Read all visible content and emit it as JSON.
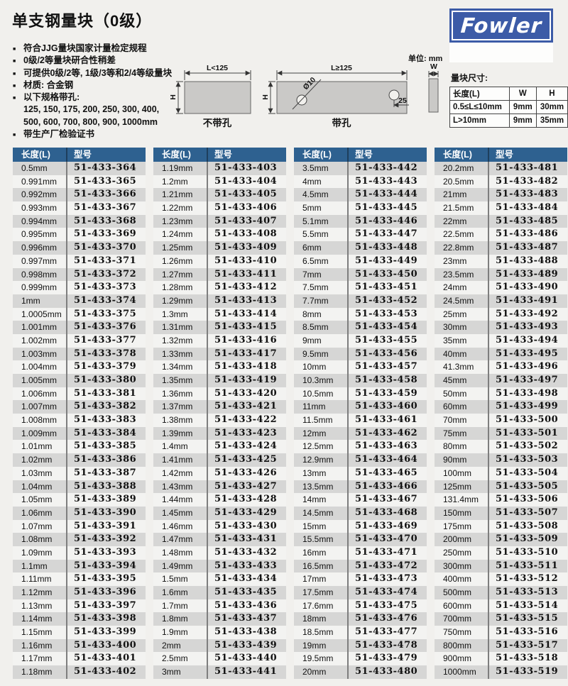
{
  "page": {
    "title": "单支钢量块（0级）",
    "unit_note": "单位: mm"
  },
  "logo": {
    "text": "Fowler"
  },
  "features": {
    "items": [
      "符合JJG量块国家计量检定规程",
      "0级/2等量块研合性稍差",
      "可提供0级/2等, 1级/3等和2/4等级量块",
      "材质: 合金钢",
      "以下规格带孔:",
      "125, 150, 175, 200, 250, 300, 400,",
      "500, 600, 700, 800, 900, 1000mm",
      "带生产厂检验证书"
    ]
  },
  "diagram": {
    "left": {
      "top_dim": "L<125",
      "side_dim": "H",
      "caption": "不带孔"
    },
    "right": {
      "top_dim": "L≥125",
      "side_dim": "H",
      "hole_label": "Ø10",
      "offset_label": "25",
      "caption": "带孔"
    },
    "width_label": "W"
  },
  "size_table": {
    "title": "量块尺寸:",
    "headers": [
      "长度(L)",
      "W",
      "H"
    ],
    "rows": [
      [
        "0.5≤L≤10mm",
        "9mm",
        "30mm"
      ],
      [
        "L>10mm",
        "9mm",
        "35mm"
      ]
    ]
  },
  "tables": {
    "headers": [
      "长度(L)",
      "型号"
    ],
    "columns": [
      {
        "rows": [
          [
            "0.5mm",
            "51-433-364"
          ],
          [
            "0.991mm",
            "51-433-365"
          ],
          [
            "0.992mm",
            "51-433-366"
          ],
          [
            "0.993mm",
            "51-433-367"
          ],
          [
            "0.994mm",
            "51-433-368"
          ],
          [
            "0.995mm",
            "51-433-369"
          ],
          [
            "0.996mm",
            "51-433-370"
          ],
          [
            "0.997mm",
            "51-433-371"
          ],
          [
            "0.998mm",
            "51-433-372"
          ],
          [
            "0.999mm",
            "51-433-373"
          ],
          [
            "1mm",
            "51-433-374"
          ],
          [
            "1.0005mm",
            "51-433-375"
          ],
          [
            "1.001mm",
            "51-433-376"
          ],
          [
            "1.002mm",
            "51-433-377"
          ],
          [
            "1.003mm",
            "51-433-378"
          ],
          [
            "1.004mm",
            "51-433-379"
          ],
          [
            "1.005mm",
            "51-433-380"
          ],
          [
            "1.006mm",
            "51-433-381"
          ],
          [
            "1.007mm",
            "51-433-382"
          ],
          [
            "1.008mm",
            "51-433-383"
          ],
          [
            "1.009mm",
            "51-433-384"
          ],
          [
            "1.01mm",
            "51-433-385"
          ],
          [
            "1.02mm",
            "51-433-386"
          ],
          [
            "1.03mm",
            "51-433-387"
          ],
          [
            "1.04mm",
            "51-433-388"
          ],
          [
            "1.05mm",
            "51-433-389"
          ],
          [
            "1.06mm",
            "51-433-390"
          ],
          [
            "1.07mm",
            "51-433-391"
          ],
          [
            "1.08mm",
            "51-433-392"
          ],
          [
            "1.09mm",
            "51-433-393"
          ],
          [
            "1.1mm",
            "51-433-394"
          ],
          [
            "1.11mm",
            "51-433-395"
          ],
          [
            "1.12mm",
            "51-433-396"
          ],
          [
            "1.13mm",
            "51-433-397"
          ],
          [
            "1.14mm",
            "51-433-398"
          ],
          [
            "1.15mm",
            "51-433-399"
          ],
          [
            "1.16mm",
            "51-433-400"
          ],
          [
            "1.17mm",
            "51-433-401"
          ],
          [
            "1.18mm",
            "51-433-402"
          ]
        ]
      },
      {
        "rows": [
          [
            "1.19mm",
            "51-433-403"
          ],
          [
            "1.2mm",
            "51-433-404"
          ],
          [
            "1.21mm",
            "51-433-405"
          ],
          [
            "1.22mm",
            "51-433-406"
          ],
          [
            "1.23mm",
            "51-433-407"
          ],
          [
            "1.24mm",
            "51-433-408"
          ],
          [
            "1.25mm",
            "51-433-409"
          ],
          [
            "1.26mm",
            "51-433-410"
          ],
          [
            "1.27mm",
            "51-433-411"
          ],
          [
            "1.28mm",
            "51-433-412"
          ],
          [
            "1.29mm",
            "51-433-413"
          ],
          [
            "1.3mm",
            "51-433-414"
          ],
          [
            "1.31mm",
            "51-433-415"
          ],
          [
            "1.32mm",
            "51-433-416"
          ],
          [
            "1.33mm",
            "51-433-417"
          ],
          [
            "1.34mm",
            "51-433-418"
          ],
          [
            "1.35mm",
            "51-433-419"
          ],
          [
            "1.36mm",
            "51-433-420"
          ],
          [
            "1.37mm",
            "51-433-421"
          ],
          [
            "1.38mm",
            "51-433-422"
          ],
          [
            "1.39mm",
            "51-433-423"
          ],
          [
            "1.4mm",
            "51-433-424"
          ],
          [
            "1.41mm",
            "51-433-425"
          ],
          [
            "1.42mm",
            "51-433-426"
          ],
          [
            "1.43mm",
            "51-433-427"
          ],
          [
            "1.44mm",
            "51-433-428"
          ],
          [
            "1.45mm",
            "51-433-429"
          ],
          [
            "1.46mm",
            "51-433-430"
          ],
          [
            "1.47mm",
            "51-433-431"
          ],
          [
            "1.48mm",
            "51-433-432"
          ],
          [
            "1.49mm",
            "51-433-433"
          ],
          [
            "1.5mm",
            "51-433-434"
          ],
          [
            "1.6mm",
            "51-433-435"
          ],
          [
            "1.7mm",
            "51-433-436"
          ],
          [
            "1.8mm",
            "51-433-437"
          ],
          [
            "1.9mm",
            "51-433-438"
          ],
          [
            "2mm",
            "51-433-439"
          ],
          [
            "2.5mm",
            "51-433-440"
          ],
          [
            "3mm",
            "51-433-441"
          ]
        ]
      },
      {
        "rows": [
          [
            "3.5mm",
            "51-433-442"
          ],
          [
            "4mm",
            "51-433-443"
          ],
          [
            "4.5mm",
            "51-433-444"
          ],
          [
            "5mm",
            "51-433-445"
          ],
          [
            "5.1mm",
            "51-433-446"
          ],
          [
            "5.5mm",
            "51-433-447"
          ],
          [
            "6mm",
            "51-433-448"
          ],
          [
            "6.5mm",
            "51-433-449"
          ],
          [
            "7mm",
            "51-433-450"
          ],
          [
            "7.5mm",
            "51-433-451"
          ],
          [
            "7.7mm",
            "51-433-452"
          ],
          [
            "8mm",
            "51-433-453"
          ],
          [
            "8.5mm",
            "51-433-454"
          ],
          [
            "9mm",
            "51-433-455"
          ],
          [
            "9.5mm",
            "51-433-456"
          ],
          [
            "10mm",
            "51-433-457"
          ],
          [
            "10.3mm",
            "51-433-458"
          ],
          [
            "10.5mm",
            "51-433-459"
          ],
          [
            "11mm",
            "51-433-460"
          ],
          [
            "11.5mm",
            "51-433-461"
          ],
          [
            "12mm",
            "51-433-462"
          ],
          [
            "12.5mm",
            "51-433-463"
          ],
          [
            "12.9mm",
            "51-433-464"
          ],
          [
            "13mm",
            "51-433-465"
          ],
          [
            "13.5mm",
            "51-433-466"
          ],
          [
            "14mm",
            "51-433-467"
          ],
          [
            "14.5mm",
            "51-433-468"
          ],
          [
            "15mm",
            "51-433-469"
          ],
          [
            "15.5mm",
            "51-433-470"
          ],
          [
            "16mm",
            "51-433-471"
          ],
          [
            "16.5mm",
            "51-433-472"
          ],
          [
            "17mm",
            "51-433-473"
          ],
          [
            "17.5mm",
            "51-433-474"
          ],
          [
            "17.6mm",
            "51-433-475"
          ],
          [
            "18mm",
            "51-433-476"
          ],
          [
            "18.5mm",
            "51-433-477"
          ],
          [
            "19mm",
            "51-433-478"
          ],
          [
            "19.5mm",
            "51-433-479"
          ],
          [
            "20mm",
            "51-433-480"
          ]
        ]
      },
      {
        "rows": [
          [
            "20.2mm",
            "51-433-481"
          ],
          [
            "20.5mm",
            "51-433-482"
          ],
          [
            "21mm",
            "51-433-483"
          ],
          [
            "21.5mm",
            "51-433-484"
          ],
          [
            "22mm",
            "51-433-485"
          ],
          [
            "22.5mm",
            "51-433-486"
          ],
          [
            "22.8mm",
            "51-433-487"
          ],
          [
            "23mm",
            "51-433-488"
          ],
          [
            "23.5mm",
            "51-433-489"
          ],
          [
            "24mm",
            "51-433-490"
          ],
          [
            "24.5mm",
            "51-433-491"
          ],
          [
            "25mm",
            "51-433-492"
          ],
          [
            "30mm",
            "51-433-493"
          ],
          [
            "35mm",
            "51-433-494"
          ],
          [
            "40mm",
            "51-433-495"
          ],
          [
            "41.3mm",
            "51-433-496"
          ],
          [
            "45mm",
            "51-433-497"
          ],
          [
            "50mm",
            "51-433-498"
          ],
          [
            "60mm",
            "51-433-499"
          ],
          [
            "70mm",
            "51-433-500"
          ],
          [
            "75mm",
            "51-433-501"
          ],
          [
            "80mm",
            "51-433-502"
          ],
          [
            "90mm",
            "51-433-503"
          ],
          [
            "100mm",
            "51-433-504"
          ],
          [
            "125mm",
            "51-433-505"
          ],
          [
            "131.4mm",
            "51-433-506"
          ],
          [
            "150mm",
            "51-433-507"
          ],
          [
            "175mm",
            "51-433-508"
          ],
          [
            "200mm",
            "51-433-509"
          ],
          [
            "250mm",
            "51-433-510"
          ],
          [
            "300mm",
            "51-433-511"
          ],
          [
            "400mm",
            "51-433-512"
          ],
          [
            "500mm",
            "51-433-513"
          ],
          [
            "600mm",
            "51-433-514"
          ],
          [
            "700mm",
            "51-433-515"
          ],
          [
            "750mm",
            "51-433-516"
          ],
          [
            "800mm",
            "51-433-517"
          ],
          [
            "900mm",
            "51-433-518"
          ],
          [
            "1000mm",
            "51-433-519"
          ]
        ]
      }
    ]
  }
}
